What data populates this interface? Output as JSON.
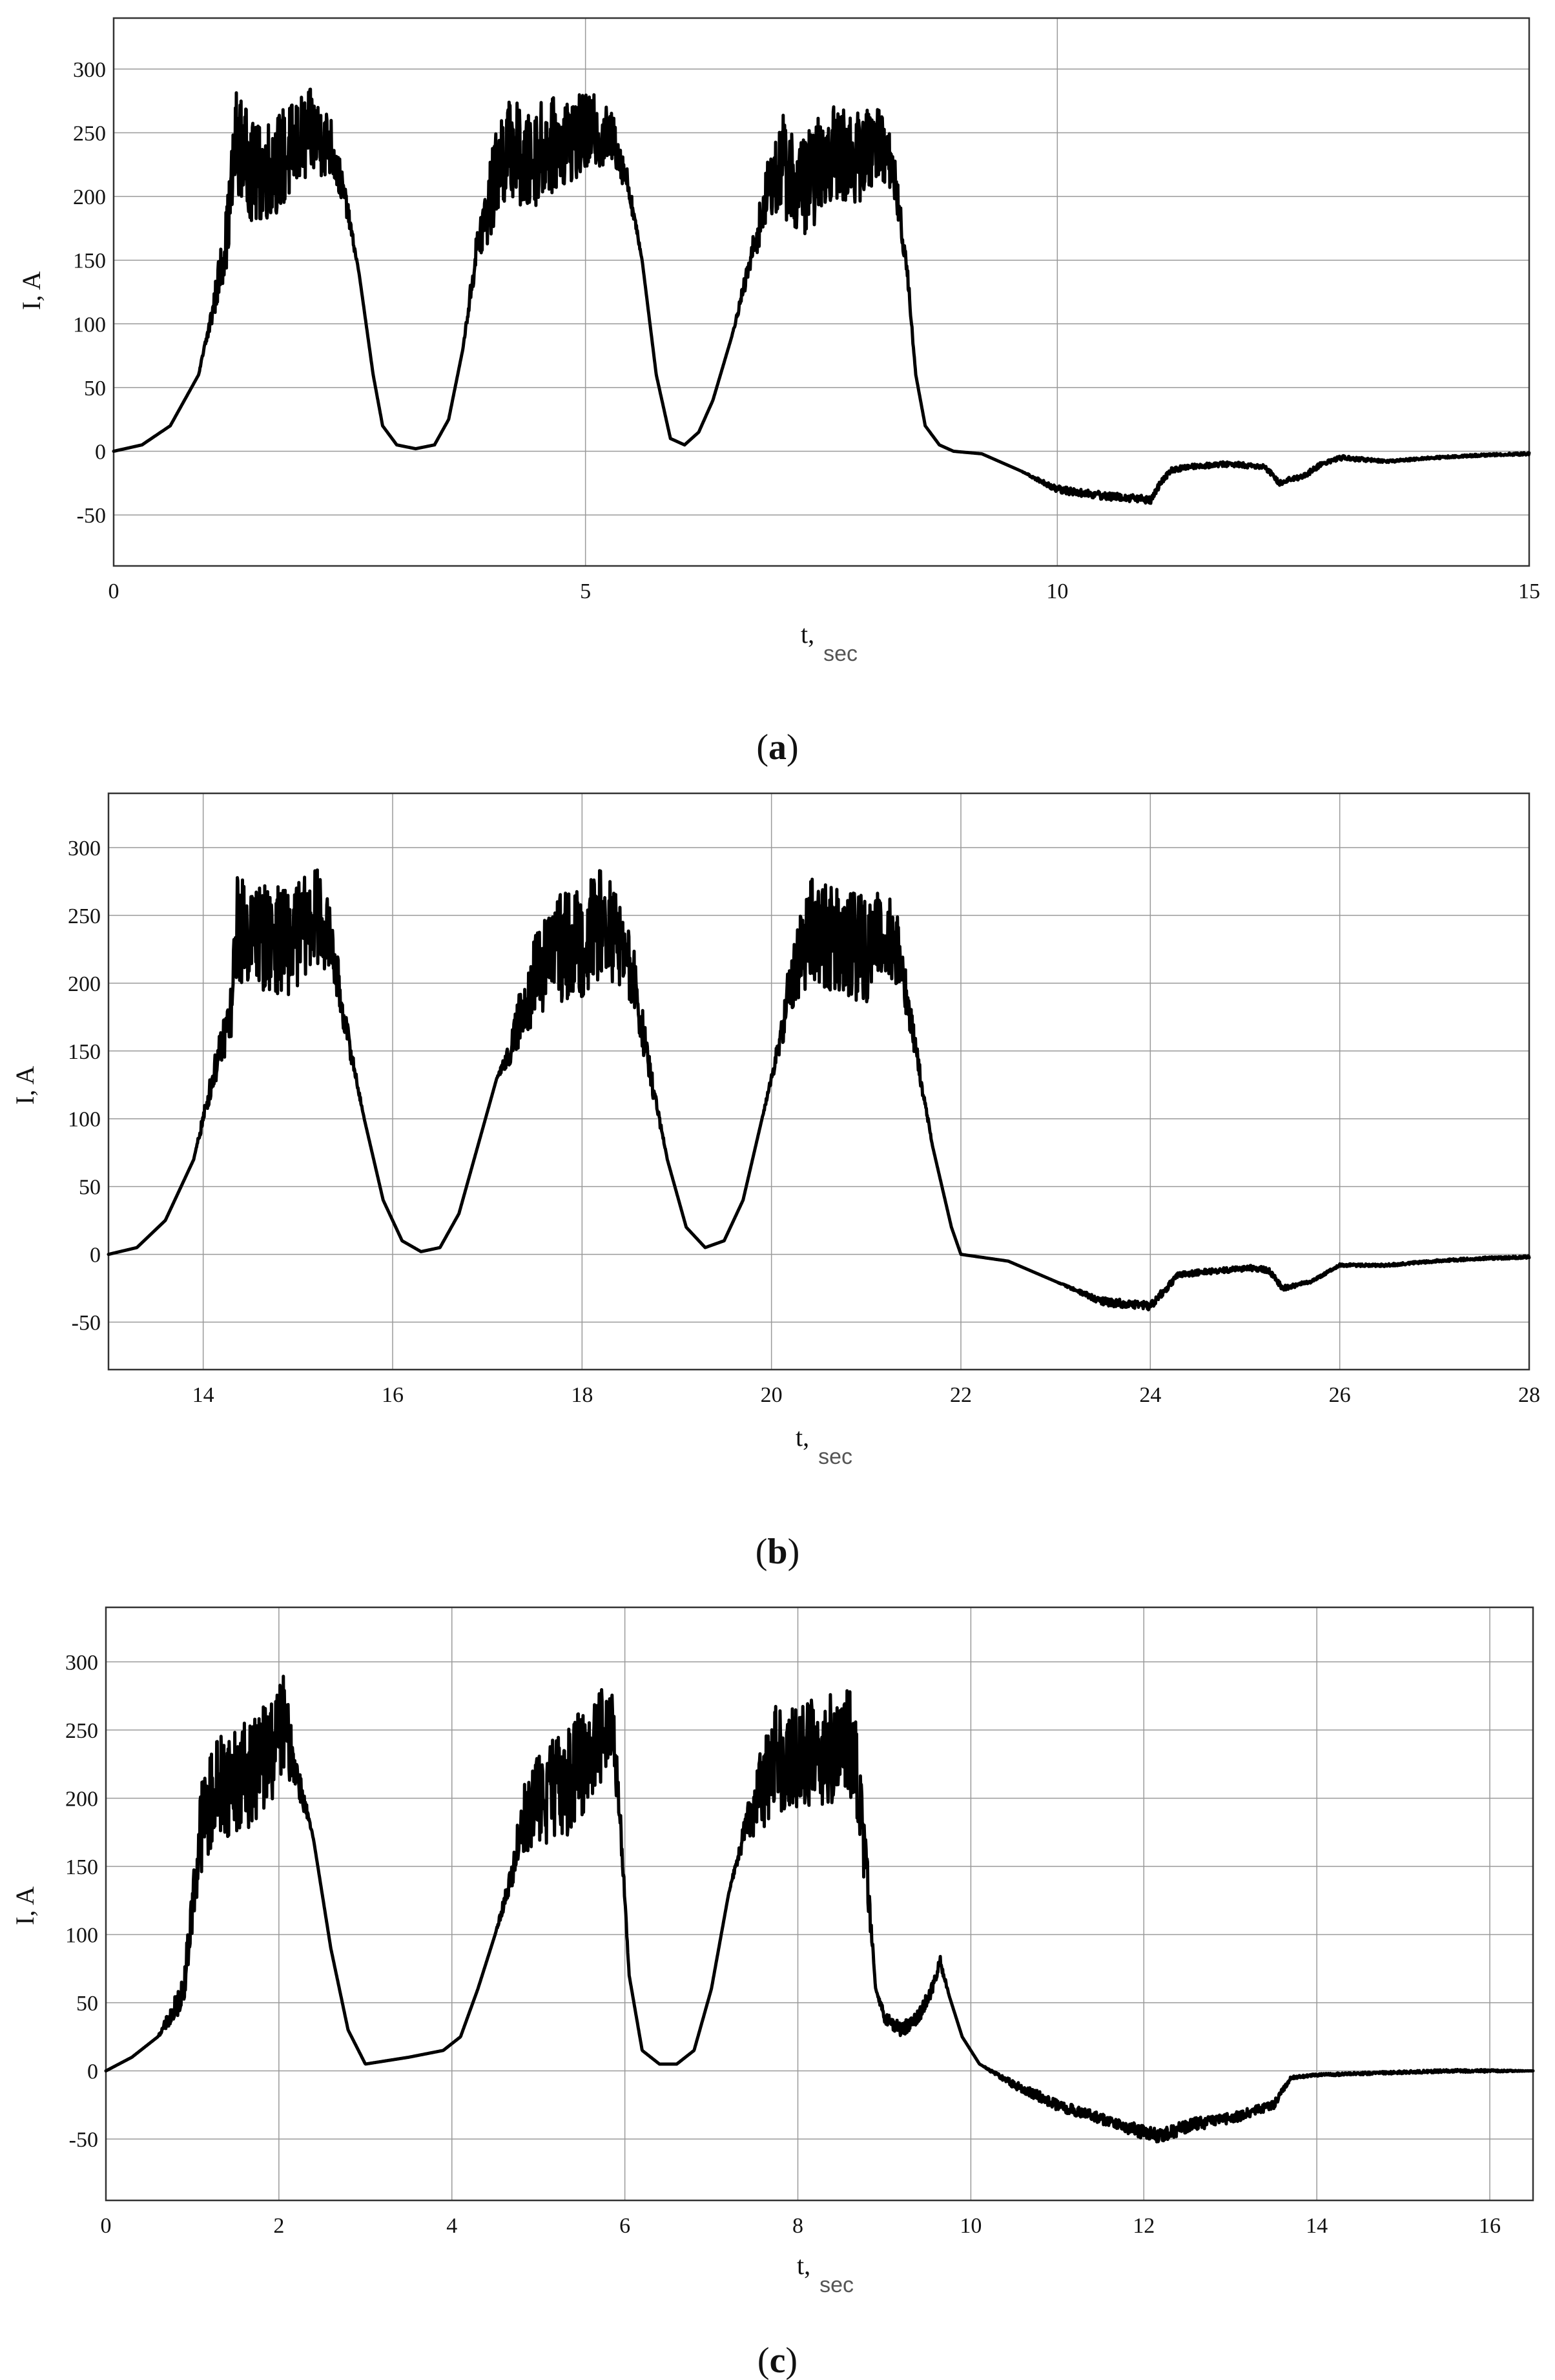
{
  "chart_data": [
    {
      "type": "line",
      "panel": "a",
      "caption": "a",
      "ylabel": "I, A",
      "xlabel": "t,",
      "xlabel_sub": "sec",
      "xlim": [
        0,
        15
      ],
      "ylim": [
        -90,
        340
      ],
      "xticks": [
        0,
        5,
        10,
        15
      ],
      "yticks": [
        -50,
        0,
        50,
        100,
        150,
        200,
        250,
        300
      ],
      "grid": true,
      "series": [
        {
          "x": [
            0,
            0.3,
            0.6,
            0.9,
            1.05,
            1.2,
            1.3,
            1.5,
            1.8,
            2.1,
            2.3,
            2.45,
            2.6,
            2.75,
            2.85,
            3.0,
            3.2,
            3.4,
            3.55,
            3.7,
            3.85,
            3.95,
            4.1,
            4.25,
            4.35,
            4.5,
            4.8,
            5.1,
            5.3,
            5.45,
            5.6,
            5.75,
            5.9,
            6.05,
            6.2,
            6.35,
            6.55,
            6.75,
            6.95,
            7.1,
            7.25,
            7.4,
            7.6,
            7.9,
            8.1,
            8.25,
            8.4,
            8.5,
            8.6,
            8.75,
            8.9,
            9.2,
            9.6,
            10.0,
            10.5,
            11.0,
            11.05,
            11.2,
            11.4,
            11.8,
            12.2,
            12.35,
            12.45,
            12.6,
            12.8,
            13.0,
            13.5,
            14.0,
            14.5,
            15.0
          ],
          "y": [
            0,
            5,
            20,
            60,
            110,
            170,
            245,
            215,
            230,
            250,
            240,
            200,
            140,
            60,
            20,
            5,
            2,
            5,
            25,
            80,
            160,
            185,
            230,
            240,
            220,
            235,
            245,
            250,
            245,
            210,
            150,
            60,
            10,
            5,
            15,
            40,
            90,
            150,
            210,
            225,
            205,
            215,
            235,
            230,
            245,
            225,
            150,
            60,
            20,
            5,
            0,
            -2,
            -15,
            -30,
            -35,
            -38,
            -30,
            -15,
            -12,
            -10,
            -12,
            -25,
            -22,
            -20,
            -10,
            -5,
            -8,
            -5,
            -3,
            -2
          ],
          "noise": [
            0,
            0,
            0,
            0,
            10,
            25,
            40,
            40,
            40,
            35,
            25,
            10,
            0,
            0,
            0,
            0,
            0,
            0,
            0,
            0,
            15,
            30,
            40,
            40,
            40,
            40,
            35,
            30,
            20,
            10,
            0,
            0,
            0,
            0,
            0,
            0,
            0,
            10,
            25,
            40,
            40,
            40,
            40,
            35,
            30,
            20,
            10,
            0,
            0,
            0,
            0,
            0,
            0,
            3,
            3,
            3,
            3,
            2,
            2,
            2,
            2,
            2,
            2,
            2,
            2,
            2,
            1,
            1,
            1,
            1
          ]
        }
      ]
    },
    {
      "type": "line",
      "panel": "b",
      "caption": "b",
      "ylabel": "I, A",
      "xlabel": "t,",
      "xlabel_sub": "sec",
      "xlim": [
        13,
        28
      ],
      "ylim": [
        -85,
        340
      ],
      "xticks": [
        14,
        16,
        18,
        20,
        22,
        24,
        26,
        28
      ],
      "yticks": [
        -50,
        0,
        50,
        100,
        150,
        200,
        250,
        300
      ],
      "grid": true,
      "series": [
        {
          "x": [
            13.0,
            13.3,
            13.6,
            13.9,
            14.1,
            14.3,
            14.35,
            14.6,
            14.9,
            15.2,
            15.35,
            15.5,
            15.7,
            15.9,
            16.1,
            16.3,
            16.5,
            16.7,
            16.9,
            17.1,
            17.25,
            17.4,
            17.7,
            18.0,
            18.2,
            18.4,
            18.55,
            18.7,
            18.9,
            19.1,
            19.3,
            19.5,
            19.7,
            19.9,
            20.1,
            20.2,
            20.4,
            20.7,
            21.0,
            21.2,
            21.35,
            21.5,
            21.7,
            21.9,
            22.0,
            22.5,
            23.0,
            23.5,
            24.0,
            24.1,
            24.3,
            24.7,
            25.1,
            25.25,
            25.4,
            25.7,
            26.0,
            26.5,
            27.0,
            27.5,
            28.0
          ],
          "y": [
            0,
            5,
            25,
            70,
            130,
            180,
            240,
            235,
            230,
            250,
            230,
            170,
            100,
            40,
            10,
            2,
            5,
            30,
            80,
            130,
            150,
            190,
            225,
            230,
            245,
            230,
            200,
            140,
            70,
            20,
            5,
            10,
            40,
            100,
            160,
            200,
            240,
            230,
            225,
            240,
            220,
            160,
            80,
            20,
            0,
            -5,
            -20,
            -35,
            -38,
            -30,
            -15,
            -12,
            -10,
            -12,
            -25,
            -20,
            -8,
            -8,
            -5,
            -3,
            -2
          ],
          "noise": [
            0,
            0,
            0,
            0,
            10,
            20,
            40,
            40,
            40,
            35,
            25,
            10,
            0,
            0,
            0,
            0,
            0,
            0,
            0,
            0,
            10,
            30,
            40,
            40,
            40,
            35,
            25,
            10,
            0,
            0,
            0,
            0,
            0,
            0,
            10,
            25,
            40,
            40,
            40,
            35,
            25,
            10,
            0,
            0,
            0,
            0,
            0,
            3,
            3,
            3,
            2,
            2,
            2,
            2,
            2,
            1,
            1,
            1,
            1,
            1,
            1
          ]
        }
      ]
    },
    {
      "type": "line",
      "panel": "c",
      "caption": "c",
      "ylabel": "I, A",
      "xlabel": "t,",
      "xlabel_sub": "sec",
      "xlim": [
        0,
        16.5
      ],
      "ylim": [
        -95,
        340
      ],
      "xticks": [
        0,
        2,
        4,
        6,
        8,
        10,
        12,
        14,
        16
      ],
      "yticks": [
        -50,
        0,
        50,
        100,
        150,
        200,
        250,
        300
      ],
      "grid": true,
      "series": [
        {
          "x": [
            0,
            0.3,
            0.6,
            0.8,
            0.9,
            1.0,
            1.1,
            1.3,
            1.6,
            1.9,
            2.05,
            2.2,
            2.4,
            2.6,
            2.8,
            3.0,
            3.5,
            3.9,
            4.1,
            4.3,
            4.5,
            4.7,
            4.8,
            5.0,
            5.3,
            5.6,
            5.75,
            5.85,
            5.95,
            6.05,
            6.2,
            6.4,
            6.6,
            6.8,
            7.0,
            7.2,
            7.4,
            7.6,
            7.7,
            8.0,
            8.3,
            8.6,
            8.7,
            8.8,
            8.9,
            9.0,
            9.2,
            9.4,
            9.55,
            9.65,
            9.75,
            9.9,
            10.1,
            10.5,
            11.0,
            11.5,
            12.0,
            12.2,
            12.5,
            13.0,
            13.5,
            13.7,
            14.0,
            14.5,
            15.0,
            15.5,
            16.0,
            16.5
          ],
          "y": [
            0,
            10,
            25,
            45,
            60,
            120,
            180,
            210,
            215,
            235,
            255,
            220,
            170,
            90,
            30,
            5,
            10,
            15,
            25,
            60,
            100,
            145,
            180,
            200,
            210,
            235,
            250,
            260,
            180,
            70,
            15,
            5,
            5,
            15,
            60,
            130,
            180,
            210,
            230,
            230,
            235,
            240,
            210,
            140,
            60,
            40,
            30,
            40,
            60,
            80,
            55,
            25,
            5,
            -10,
            -25,
            -35,
            -45,
            -48,
            -40,
            -35,
            -25,
            -5,
            -3,
            -2,
            -1,
            0,
            0,
            0
          ],
          "noise": [
            0,
            0,
            0,
            10,
            10,
            20,
            35,
            40,
            40,
            40,
            35,
            15,
            0,
            0,
            0,
            0,
            0,
            0,
            0,
            0,
            0,
            10,
            25,
            35,
            40,
            40,
            35,
            25,
            10,
            0,
            0,
            0,
            0,
            0,
            0,
            0,
            10,
            35,
            40,
            40,
            40,
            40,
            35,
            20,
            0,
            5,
            5,
            5,
            5,
            5,
            0,
            0,
            0,
            3,
            4,
            4,
            5,
            5,
            5,
            4,
            3,
            1,
            1,
            1,
            1,
            1,
            1,
            0
          ]
        }
      ]
    }
  ]
}
